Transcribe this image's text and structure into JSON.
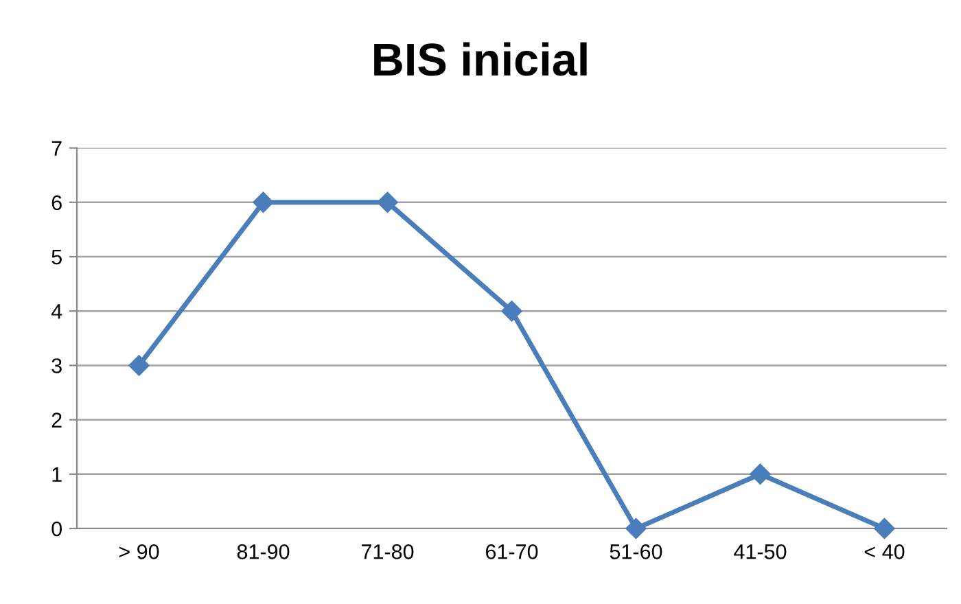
{
  "chart_data": {
    "type": "line",
    "title": "BIS inicial",
    "categories": [
      "> 90",
      "81-90",
      "71-80",
      "61-70",
      "51-60",
      "41-50",
      "< 40"
    ],
    "series": [
      {
        "color": "#4a7ebb",
        "values": [
          3,
          6,
          6,
          4,
          0,
          1,
          0
        ]
      }
    ],
    "ylim": [
      0,
      7
    ],
    "yticks": [
      0,
      1,
      2,
      3,
      4,
      5,
      6,
      7
    ],
    "grid": "y",
    "marker": "diamond",
    "line_style": "solid",
    "legend": false
  }
}
